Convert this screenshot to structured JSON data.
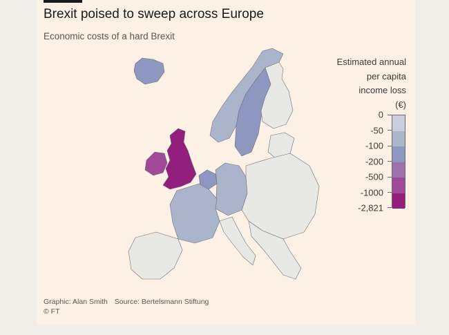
{
  "header": {
    "title": "Brexit poised to sweep across Europe",
    "subtitle": "Economic costs of a hard Brexit"
  },
  "legend": {
    "title_lines": [
      "Estimated annual",
      "per capita",
      "income loss",
      "(€)"
    ],
    "ticks": [
      "0",
      "-50",
      "-100",
      "-200",
      "-500",
      "-1000",
      "-2,821"
    ],
    "colors": [
      "#e8e8e4",
      "#c8cedb",
      "#aab4cb",
      "#8e97bf",
      "#9b72ad",
      "#a14898",
      "#921e7e"
    ]
  },
  "footer": {
    "graphic": "Graphic: Alan Smith",
    "source": "Source: Bertelsmann Stiftung",
    "copyright": "© FT"
  },
  "map": {
    "regions": {
      "iceland": "#8e97bf",
      "ireland": "#a14898",
      "uk": "#921e7e",
      "norway": "#aab4cb",
      "sweden": "#8e97bf",
      "finland": "#e8e8e4",
      "france": "#aab4cb",
      "iberia": "#e8e8e4",
      "benelux": "#8e97bf",
      "germany": "#aab4cb",
      "east": "#e8e8e4",
      "italy": "#e8e8e4",
      "balkans": "#e8e8e4",
      "baltics": "#e8e8e4"
    }
  }
}
